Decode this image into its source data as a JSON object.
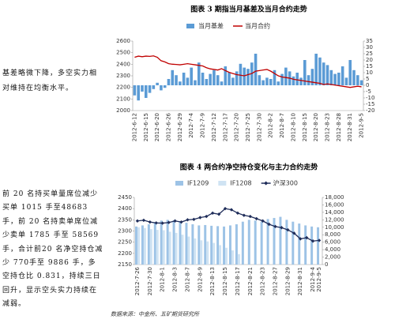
{
  "chart_data": [
    {
      "type": "combo",
      "title": "图表 3 期指当月基差及当月合约走势",
      "categories": [
        "2012-6-12",
        null,
        null,
        "2012-6-15",
        null,
        null,
        "2012-6-20",
        null,
        null,
        "2012-6-26",
        null,
        null,
        "2012-6-29",
        null,
        null,
        "2012-7-4",
        null,
        null,
        "2012-7-9",
        null,
        null,
        "2012-7-12",
        null,
        null,
        "2012-7-17",
        null,
        null,
        "2012-7-20",
        null,
        null,
        "2012-7-25",
        null,
        null,
        "2012-7-30",
        null,
        null,
        "2012-8-2",
        null,
        null,
        "2012-8-7",
        null,
        null,
        "2012-8-10",
        null,
        null,
        "2012-8-15",
        null,
        null,
        "2012-8-20",
        null,
        null,
        "2012-8-23",
        null,
        null,
        "2012-8-28",
        null,
        null,
        "2012-8-31",
        null,
        null,
        "2012-9-5"
      ],
      "series": [
        {
          "name": "当月基差",
          "type": "bar",
          "axis": "y2",
          "color": "#5b9bd5",
          "values": [
            -8,
            -12,
            -5,
            -10,
            -6,
            -3,
            2,
            -4,
            -2,
            5,
            12,
            8,
            3,
            10,
            6,
            14,
            4,
            18,
            10,
            5,
            9,
            12,
            8,
            3,
            15,
            10,
            6,
            11,
            17,
            14,
            13,
            18,
            25,
            8,
            4,
            6,
            5,
            12,
            3,
            9,
            14,
            11,
            7,
            10,
            6,
            20,
            8,
            13,
            25,
            22,
            18,
            16,
            12,
            9,
            10,
            15,
            6,
            20,
            12,
            8,
            4
          ]
        },
        {
          "name": "当月合约",
          "type": "line",
          "color": "#c00000",
          "values": [
            2460,
            2470,
            2465,
            2470,
            2468,
            2472,
            2460,
            2430,
            2420,
            2405,
            2400,
            2398,
            2395,
            2400,
            2405,
            2400,
            2395,
            2390,
            2385,
            2370,
            2360,
            2355,
            2350,
            2362,
            2345,
            2330,
            2320,
            2310,
            2305,
            2300,
            2310,
            2320,
            2340,
            2345,
            2350,
            2355,
            2340,
            2320,
            2300,
            2290,
            2285,
            2280,
            2270,
            2265,
            2260,
            2255,
            2250,
            2245,
            2240,
            2235,
            2225,
            2230,
            2225,
            2220,
            2215,
            2210,
            2205,
            2200,
            2205,
            2210,
            2205
          ]
        }
      ],
      "ylim": [
        2000,
        2600
      ],
      "yticks": [
        2000,
        2100,
        2200,
        2300,
        2400,
        2500,
        2600
      ],
      "y2lim": [
        -20,
        35
      ],
      "y2ticks": [
        -20,
        -15,
        -10,
        -5,
        0,
        5,
        10,
        15,
        20,
        25,
        30,
        35
      ],
      "grid": false
    },
    {
      "type": "combo",
      "title": "图表 4 两合约净空持仓变化与主力合约走势",
      "categories": [
        "2012-7-26",
        null,
        "2012-7-30",
        null,
        "2012-8-1",
        null,
        "2012-8-3",
        null,
        "2012-8-7",
        null,
        "2012-8-9",
        null,
        "2012-8-13",
        null,
        "2012-8-15",
        null,
        "2012-8-17",
        null,
        "2012-8-21",
        null,
        "2012-8-23",
        null,
        "2012-8-27",
        null,
        "2012-8-29",
        null,
        "2012-8-31",
        null,
        "2012-9-4",
        "2012-9-5"
      ],
      "series": [
        {
          "name": "IF1209",
          "type": "bar",
          "axis": "y2",
          "color": "#9dc3e6",
          "values": [
            10200,
            10500,
            10800,
            11200,
            11800,
            12000,
            11900,
            11500,
            11200,
            10800,
            10500,
            10600,
            10400,
            10300,
            10200,
            10500,
            10800,
            11500,
            12000,
            11800,
            11500,
            12200,
            12500,
            12800,
            12000,
            11500,
            11000,
            10500,
            10200,
            10000
          ]
        },
        {
          "name": "IF1208",
          "type": "bar",
          "axis": "y2",
          "color": "#cfe3f3",
          "values": [
            10000,
            9800,
            9500,
            9300,
            9200,
            8800,
            8500,
            8000,
            7500,
            7000,
            6500,
            6200,
            5800,
            5200,
            4500,
            3800,
            2800,
            null,
            null,
            null,
            null,
            null,
            null,
            null,
            null,
            null,
            null,
            null,
            null,
            null
          ]
        },
        {
          "name": "沪深300",
          "type": "line",
          "color": "#1f2d5a",
          "marker": "diamond",
          "values": [
            2345,
            2348,
            2340,
            2336,
            2335,
            2338,
            2345,
            2340,
            2350,
            2352,
            2360,
            2365,
            2380,
            2375,
            2400,
            2395,
            2380,
            2370,
            2365,
            2355,
            2345,
            2330,
            2320,
            2315,
            2305,
            2290,
            2265,
            2270,
            2255,
            2258
          ]
        }
      ],
      "ylim": [
        2150,
        2450
      ],
      "yticks": [
        2150,
        2200,
        2250,
        2300,
        2350,
        2400,
        2450
      ],
      "y2lim": [
        0,
        18000
      ],
      "y2ticks": [
        0,
        {
          "value": 2000,
          "label": "2,000"
        },
        {
          "value": 4000,
          "label": "4,000"
        },
        {
          "value": 6000,
          "label": "6,000"
        },
        {
          "value": 8000,
          "label": "8,000"
        },
        {
          "value": 10000,
          "label": "10,000"
        },
        {
          "value": 12000,
          "label": "12,000"
        },
        {
          "value": 14000,
          "label": "14,000"
        },
        {
          "value": 16000,
          "label": "16,000"
        },
        {
          "value": 18000,
          "label": "18,000"
        }
      ],
      "grid": false
    }
  ],
  "notes": [
    "基差略微下降，多空实力相对维持在均衡水平。",
    "前 20 名持买单量席位减少买单 1015 手至48683 手，前 20 名持卖单席位减少卖单 1785 手至 58569 手，合计前20 名净空持仓减少 770手至 9886 手，多空持仓比 0.831，持续三日回升，显示空头实力持续在减弱。"
  ],
  "source": "数据来源：中金所、五矿期货研究所"
}
